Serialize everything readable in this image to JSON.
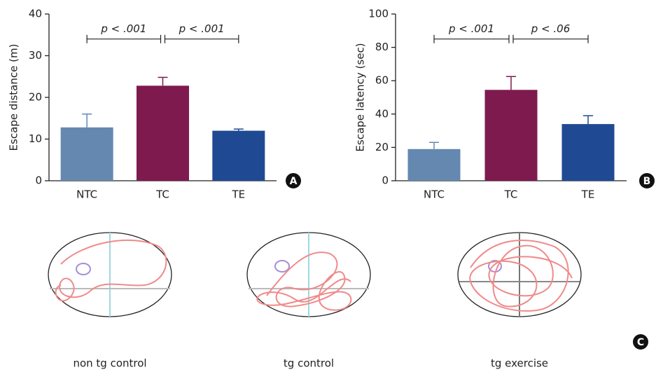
{
  "chart_data": [
    {
      "type": "bar",
      "y_label": "Escape distance (m)",
      "panel_label": "A",
      "categories": [
        "NTC",
        "TC",
        "TE"
      ],
      "values": [
        12.8,
        22.8,
        12
      ],
      "errors": [
        3.2,
        2,
        0.4
      ],
      "colors": [
        "#6588b0",
        "#7e1a4e",
        "#1f4a93"
      ],
      "ylim": [
        0,
        40
      ],
      "yticks": [
        0,
        10,
        20,
        30,
        40
      ],
      "grid": false,
      "annotations": [
        "p < .001",
        "p < .001"
      ]
    },
    {
      "type": "bar",
      "y_label": "Escape latency (sec)",
      "panel_label": "B",
      "categories": [
        "NTC",
        "TC",
        "TE"
      ],
      "values": [
        19,
        54.5,
        34
      ],
      "errors": [
        4,
        8,
        5
      ],
      "colors": [
        "#6588b0",
        "#7e1a4e",
        "#1f4a93"
      ],
      "ylim": [
        0,
        100
      ],
      "yticks": [
        0,
        20,
        40,
        60,
        80,
        100
      ],
      "grid": false,
      "annotations": [
        "p < .001",
        "p < .06"
      ]
    }
  ],
  "swim_paths": {
    "panel_label": "C",
    "captions": [
      "non tg control",
      "tg control",
      "tg exercise"
    ]
  }
}
